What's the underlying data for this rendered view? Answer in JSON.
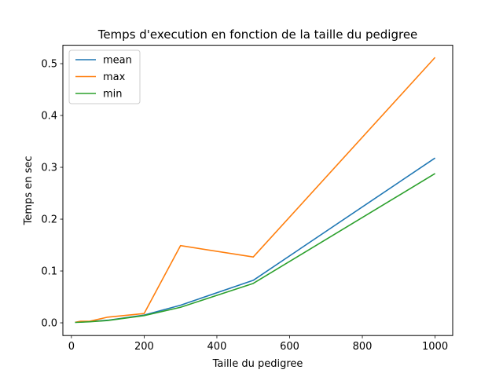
{
  "chart_data": {
    "type": "line",
    "title": "Temps d'execution en fonction de la taille du pedigree",
    "xlabel": "Taille du pedigree",
    "ylabel": "Temps en sec",
    "xlim": [
      -23.5,
      1048.5
    ],
    "ylim": [
      -0.0245,
      0.5355
    ],
    "xticks": [
      0,
      200,
      400,
      600,
      800,
      1000
    ],
    "yticks": [
      0.0,
      0.1,
      0.2,
      0.3,
      0.4,
      0.5
    ],
    "xtick_labels": [
      "0",
      "200",
      "400",
      "600",
      "800",
      "1000"
    ],
    "ytick_labels": [
      "0.0",
      "0.1",
      "0.2",
      "0.3",
      "0.4",
      "0.5"
    ],
    "grid": false,
    "legend_position": "upper-left",
    "x": [
      10,
      25,
      50,
      100,
      200,
      300,
      500,
      1000
    ],
    "series": [
      {
        "name": "mean",
        "color": "#1f77b4",
        "values": [
          0.001,
          0.0015,
          0.0025,
          0.005,
          0.015,
          0.034,
          0.082,
          0.318
        ]
      },
      {
        "name": "max",
        "color": "#ff7f0e",
        "values": [
          0.001,
          0.003,
          0.003,
          0.011,
          0.018,
          0.149,
          0.127,
          0.512
        ]
      },
      {
        "name": "min",
        "color": "#2ca02c",
        "values": [
          0.0008,
          0.0012,
          0.002,
          0.0045,
          0.014,
          0.03,
          0.076,
          0.288
        ]
      }
    ]
  }
}
